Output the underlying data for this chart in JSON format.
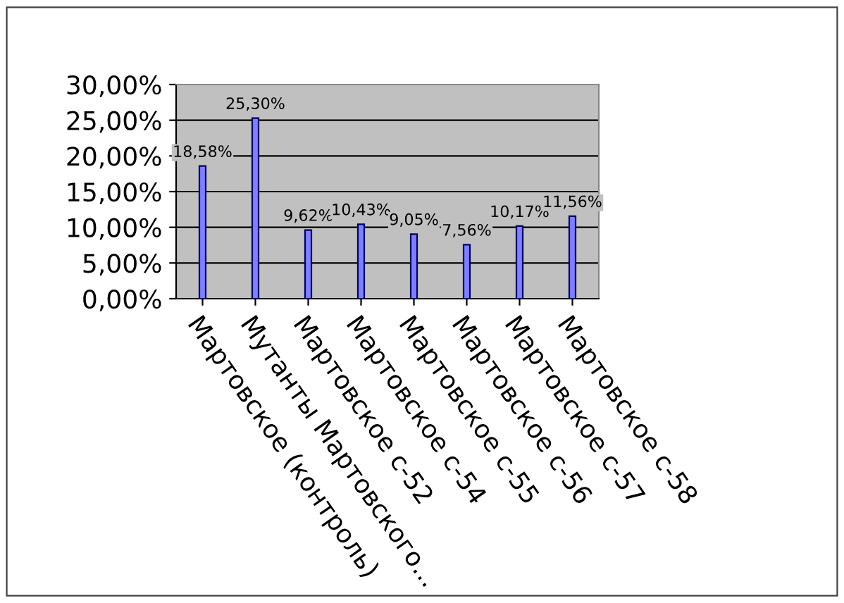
{
  "chart_data": {
    "type": "bar",
    "categories": [
      "Мартовское (контроль)",
      "Мутанты Мартовского...",
      "Мартовское с-52",
      "Мартовское с-54",
      "Мартовское с-55",
      "Мартовское с-56",
      "Мартовское с-57",
      "Мартовское с-58"
    ],
    "values": [
      18.58,
      25.3,
      9.62,
      10.43,
      9.05,
      7.56,
      10.17,
      11.56
    ],
    "value_labels": [
      "18,58%",
      "25,30%",
      "9,62%",
      "10,43%",
      "9,05%",
      "7,56%",
      "10,17%",
      "11,56%"
    ],
    "color": "#8080ff",
    "ylim": [
      0,
      30
    ],
    "yticks": [
      {
        "value": 0,
        "label": "0,00%"
      },
      {
        "value": 5,
        "label": "5,00%"
      },
      {
        "value": 10,
        "label": "10,00%"
      },
      {
        "value": 15,
        "label": "15,00%"
      },
      {
        "value": 20,
        "label": "20,00%"
      },
      {
        "value": 25,
        "label": "25,00%"
      },
      {
        "value": 30,
        "label": "30,00%"
      }
    ],
    "grid": "y",
    "legend": false
  }
}
